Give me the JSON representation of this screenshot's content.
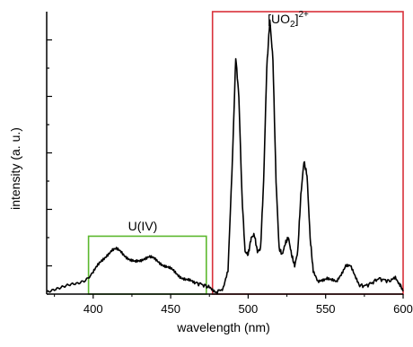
{
  "chart_data": {
    "type": "line",
    "xlabel": "wavelength (nm)",
    "ylabel": "intensity (a. u.)",
    "xlim": [
      370,
      600
    ],
    "ylim": [
      0,
      1.0
    ],
    "x_ticks": [
      400,
      450,
      500,
      550,
      600
    ],
    "y_tick_labels_shown": false,
    "grid": false,
    "series": [
      {
        "color": "#000000",
        "points": [
          [
            370,
            0.01
          ],
          [
            375,
            0.02
          ],
          [
            380,
            0.025
          ],
          [
            385,
            0.03
          ],
          [
            390,
            0.035
          ],
          [
            395,
            0.05
          ],
          [
            400,
            0.08
          ],
          [
            403,
            0.1
          ],
          [
            406,
            0.12
          ],
          [
            409,
            0.14
          ],
          [
            412,
            0.155
          ],
          [
            415,
            0.158
          ],
          [
            418,
            0.15
          ],
          [
            421,
            0.135
          ],
          [
            424,
            0.12
          ],
          [
            427,
            0.112
          ],
          [
            430,
            0.118
          ],
          [
            433,
            0.128
          ],
          [
            436,
            0.132
          ],
          [
            439,
            0.125
          ],
          [
            442,
            0.115
          ],
          [
            445,
            0.105
          ],
          [
            448,
            0.095
          ],
          [
            451,
            0.085
          ],
          [
            454,
            0.072
          ],
          [
            457,
            0.06
          ],
          [
            460,
            0.05
          ],
          [
            463,
            0.045
          ],
          [
            466,
            0.04
          ],
          [
            470,
            0.035
          ],
          [
            474,
            0.025
          ],
          [
            477,
            0.015
          ],
          [
            480,
            0.008
          ],
          [
            484,
            0.02
          ],
          [
            487,
            0.08
          ],
          [
            490,
            0.5
          ],
          [
            492,
            0.84
          ],
          [
            494,
            0.7
          ],
          [
            496,
            0.35
          ],
          [
            498,
            0.15
          ],
          [
            500,
            0.14
          ],
          [
            502,
            0.2
          ],
          [
            504,
            0.21
          ],
          [
            506,
            0.15
          ],
          [
            508,
            0.16
          ],
          [
            510,
            0.4
          ],
          [
            512,
            0.8
          ],
          [
            514,
            0.97
          ],
          [
            516,
            0.83
          ],
          [
            518,
            0.4
          ],
          [
            520,
            0.16
          ],
          [
            522,
            0.14
          ],
          [
            524,
            0.18
          ],
          [
            526,
            0.2
          ],
          [
            528,
            0.14
          ],
          [
            530,
            0.1
          ],
          [
            532,
            0.15
          ],
          [
            534,
            0.35
          ],
          [
            536,
            0.47
          ],
          [
            538,
            0.42
          ],
          [
            540,
            0.2
          ],
          [
            542,
            0.08
          ],
          [
            545,
            0.04
          ],
          [
            548,
            0.05
          ],
          [
            551,
            0.06
          ],
          [
            554,
            0.05
          ],
          [
            557,
            0.04
          ],
          [
            560,
            0.07
          ],
          [
            563,
            0.105
          ],
          [
            566,
            0.1
          ],
          [
            569,
            0.06
          ],
          [
            572,
            0.03
          ],
          [
            576,
            0.03
          ],
          [
            580,
            0.04
          ],
          [
            584,
            0.055
          ],
          [
            588,
            0.05
          ],
          [
            592,
            0.045
          ],
          [
            595,
            0.06
          ],
          [
            598,
            0.035
          ],
          [
            600,
            0.01
          ]
        ]
      }
    ],
    "annotations": [
      {
        "text": "U(IV)",
        "x_range": [
          397,
          473
        ],
        "y_range": [
          0,
          0.205
        ],
        "color": "#5cb82e"
      },
      {
        "text": "[UO2]2+",
        "base": "[UO",
        "subscript": "2",
        "bracket": "]",
        "superscript": "2+",
        "x_range": [
          477,
          600
        ],
        "y_range": [
          0,
          1.0
        ],
        "color": "#d9303a"
      }
    ]
  }
}
